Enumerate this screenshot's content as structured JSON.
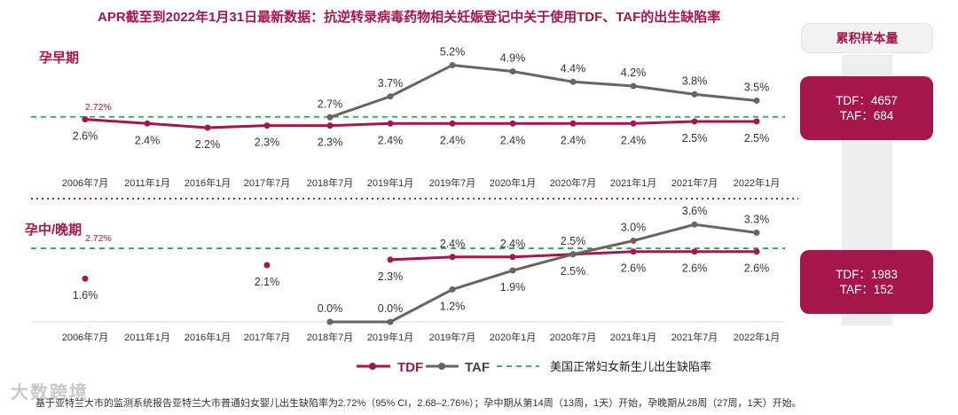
{
  "title": "APR截至到2022年1月31日最新数据：抗逆转录病毒药物相关妊娠登记中关于使用TDF、TAF的出生缺陷率",
  "side_header": "累积样本量",
  "colors": {
    "tdf": "#a5164a",
    "taf": "#6b6360",
    "baseline": "#2fa84f",
    "divider": "#a5164a"
  },
  "chart_data": [
    {
      "type": "line",
      "panel_label": "孕早期",
      "categories": [
        "2006年7月",
        "2011年1月",
        "2016年1月",
        "2017年7月",
        "2018年7月",
        "2019年1月",
        "2019年7月",
        "2020年1月",
        "2020年7月",
        "2021年1月",
        "2021年7月",
        "2022年1月"
      ],
      "series": [
        {
          "name": "TDF",
          "values": [
            2.6,
            2.4,
            2.2,
            2.3,
            2.3,
            2.4,
            2.4,
            2.4,
            2.4,
            2.4,
            2.5,
            2.5
          ],
          "labels": [
            "2.6%",
            "2.4%",
            "2.2%",
            "2.3%",
            "2.3%",
            "2.4%",
            "2.4%",
            "2.4%",
            "2.4%",
            "2.4%",
            "2.5%",
            "2.5%"
          ]
        },
        {
          "name": "TAF",
          "values": [
            null,
            null,
            null,
            null,
            2.7,
            3.7,
            5.2,
            4.9,
            4.4,
            4.2,
            3.8,
            3.5
          ],
          "labels": [
            "",
            "",
            "",
            "",
            "2.7%",
            "3.7%",
            "5.2%",
            "4.9%",
            "4.4%",
            "4.2%",
            "3.8%",
            "3.5%"
          ]
        }
      ],
      "baseline": {
        "value": 2.72,
        "label": "2.72%"
      },
      "sample_size": {
        "tdf": "TDF：4657",
        "taf": "TAF：684"
      }
    },
    {
      "type": "line",
      "panel_label": "孕中/晚期",
      "categories": [
        "2006年7月",
        "2011年1月",
        "2016年1月",
        "2017年7月",
        "2018年7月",
        "2019年1月",
        "2019年7月",
        "2020年1月",
        "2020年7月",
        "2021年1月",
        "2021年7月",
        "2022年1月"
      ],
      "series": [
        {
          "name": "TDF",
          "values": [
            1.6,
            null,
            null,
            2.1,
            null,
            2.3,
            2.4,
            2.4,
            2.5,
            2.6,
            2.6,
            2.6
          ],
          "labels": [
            "1.6%",
            "",
            "",
            "2.1%",
            "",
            "2.3%",
            "2.4%",
            "2.4%",
            "2.5%",
            "2.6%",
            "2.6%",
            "2.6%"
          ]
        },
        {
          "name": "TAF",
          "values": [
            null,
            null,
            null,
            null,
            0.0,
            0.0,
            1.2,
            1.9,
            2.5,
            3.0,
            3.6,
            3.3
          ],
          "labels": [
            "",
            "",
            "",
            "",
            "0.0%",
            "0.0%",
            "1.2%",
            "1.9%",
            "2.5%",
            "3.0%",
            "3.6%",
            "3.3%"
          ]
        }
      ],
      "baseline": {
        "value": 2.72,
        "label": "2.72%"
      },
      "sample_size": {
        "tdf": "TDF：1983",
        "taf": "TAF：152"
      }
    }
  ],
  "legend": {
    "tdf": "TDF",
    "taf": "TAF",
    "baseline": "美国正常妇女新生儿出生缺陷率"
  },
  "footnote": "基于亚特兰大市的监测系统报告亚特兰大市普通妇女婴儿出生缺陷率为2.72%（95% CI，2.68–2.76%）；孕中期从第14周（13周，1天）开始，孕晚期从28周（27周，1天）开始。",
  "watermark": "大数跨境"
}
